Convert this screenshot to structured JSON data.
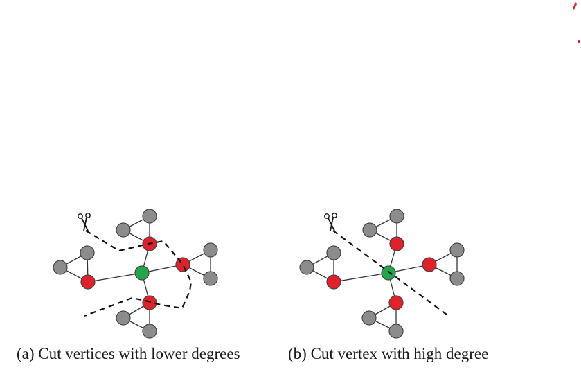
{
  "captions": {
    "a": "(a) Cut vertices with lower degrees",
    "b": "(b) Cut vertex with high degree"
  },
  "colors": {
    "gray": "#8c8c8c",
    "red": "#e2202a",
    "green": "#22a64b",
    "stroke": "#444444",
    "cut_line": "#111111",
    "artifact": "#e0202a"
  },
  "icons": {
    "scissors": "scissors-icon"
  }
}
